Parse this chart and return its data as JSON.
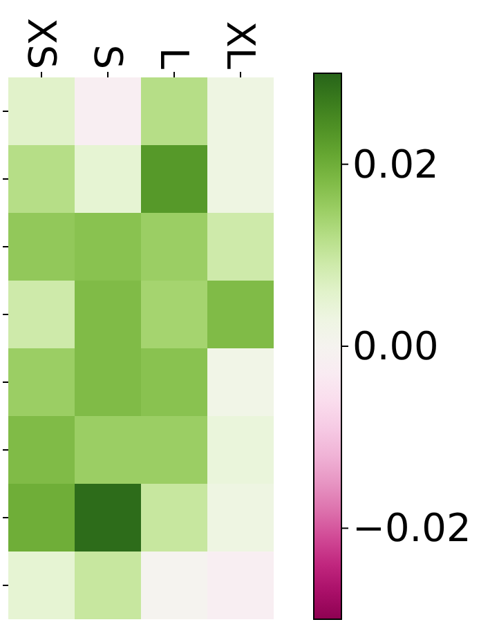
{
  "chart_data": {
    "type": "heatmap",
    "categories": [
      "XS",
      "S",
      "L",
      "XL"
    ],
    "y_categories": [
      null,
      null,
      null,
      null,
      null,
      null,
      null,
      null
    ],
    "cells": [
      [
        0.006,
        -0.002,
        0.012,
        0.003
      ],
      [
        0.012,
        0.005,
        0.023,
        0.003
      ],
      [
        0.016,
        0.017,
        0.015,
        0.009
      ],
      [
        0.009,
        0.018,
        0.014,
        0.018
      ],
      [
        0.015,
        0.018,
        0.017,
        0.002
      ],
      [
        0.018,
        0.015,
        0.015,
        0.004
      ],
      [
        0.02,
        0.029,
        0.01,
        0.003
      ],
      [
        0.005,
        0.01,
        0.0,
        -0.002
      ]
    ],
    "clim": [
      -0.03,
      0.03
    ],
    "cticks": [
      {
        "value": -0.02,
        "label": "−0.02"
      },
      {
        "value": 0,
        "label": "0.00"
      },
      {
        "value": 0.02,
        "label": "0.02"
      }
    ]
  }
}
